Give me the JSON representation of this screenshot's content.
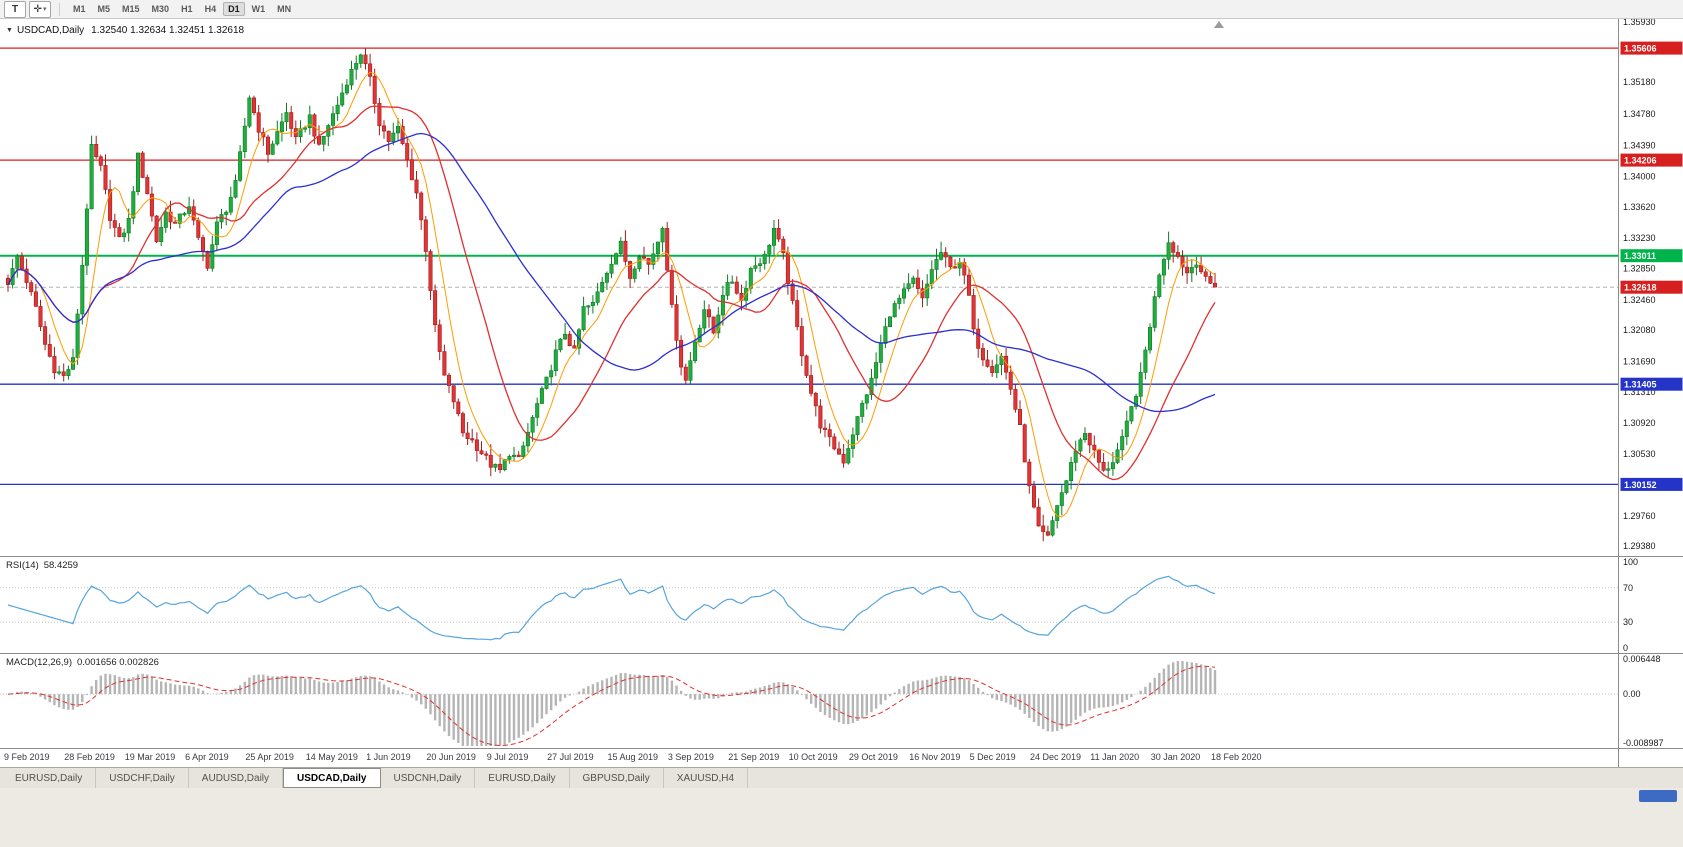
{
  "toolbar": {
    "t_button_label": "T",
    "timeframes": [
      "M1",
      "M5",
      "M15",
      "M30",
      "H1",
      "H4",
      "D1",
      "W1",
      "MN"
    ],
    "active_timeframe": "D1"
  },
  "chart_header": {
    "symbol": "USDCAD,Daily",
    "ohlc": "1.32540 1.32634 1.32451 1.32618"
  },
  "price_axis": {
    "labels": [
      "1.35930",
      "1.35180",
      "1.34780",
      "1.34390",
      "1.34000",
      "1.33620",
      "1.33230",
      "1.32850",
      "1.32460",
      "1.32080",
      "1.31690",
      "1.31310",
      "1.30920",
      "1.30530",
      "1.30140",
      "1.29760",
      "1.29380"
    ],
    "values": [
      1.3593,
      1.3518,
      1.3478,
      1.3439,
      1.34,
      1.3362,
      1.3323,
      1.3285,
      1.3246,
      1.3208,
      1.3169,
      1.3131,
      1.3092,
      1.3053,
      1.3014,
      1.2976,
      1.2938
    ]
  },
  "levels": [
    {
      "label": "1.35606",
      "price": 1.35606,
      "color": "#d62020"
    },
    {
      "label": "1.34206",
      "price": 1.34206,
      "color": "#d62020"
    },
    {
      "label": "1.33011",
      "price": 1.33011,
      "color": "#00b44c"
    },
    {
      "label": "1.31405",
      "price": 1.31405,
      "color": "#2433c8"
    },
    {
      "label": "1.30152",
      "price": 1.30152,
      "color": "#2433c8"
    }
  ],
  "current_price": {
    "label": "1.32618",
    "price": 1.32618,
    "color": "#d62020"
  },
  "chart_data": {
    "type": "candlestick",
    "symbol": "USDCAD",
    "timeframe": "Daily",
    "num_candles": 261,
    "price_range": [
      1.293,
      1.3597
    ],
    "noise": 0.0011,
    "wick": 0.0014,
    "up_color": "#1fae3d",
    "up_edge": "#0e7a24",
    "down_color": "#e23434",
    "down_edge": "#a21d1d",
    "moving_averages": [
      {
        "period": 7,
        "color": "#ff9c00"
      },
      {
        "period": 20,
        "color": "#e03030"
      },
      {
        "period": 45,
        "color": "#2b2fd4"
      }
    ],
    "anchors": [
      [
        0,
        1.3265
      ],
      [
        2,
        1.33
      ],
      [
        4,
        1.327
      ],
      [
        6,
        1.3235
      ],
      [
        8,
        1.319
      ],
      [
        10,
        1.316
      ],
      [
        12,
        1.315
      ],
      [
        14,
        1.317
      ],
      [
        16,
        1.329
      ],
      [
        18,
        1.3435
      ],
      [
        20,
        1.341
      ],
      [
        22,
        1.335
      ],
      [
        24,
        1.332
      ],
      [
        26,
        1.3345
      ],
      [
        28,
        1.3425
      ],
      [
        30,
        1.338
      ],
      [
        32,
        1.332
      ],
      [
        34,
        1.3355
      ],
      [
        36,
        1.334
      ],
      [
        39,
        1.3365
      ],
      [
        41,
        1.332
      ],
      [
        43,
        1.329
      ],
      [
        45,
        1.334
      ],
      [
        47,
        1.336
      ],
      [
        49,
        1.339
      ],
      [
        52,
        1.35
      ],
      [
        54,
        1.346
      ],
      [
        56,
        1.343
      ],
      [
        58,
        1.3455
      ],
      [
        60,
        1.348
      ],
      [
        62,
        1.3445
      ],
      [
        65,
        1.3475
      ],
      [
        67,
        1.3435
      ],
      [
        69,
        1.3465
      ],
      [
        71,
        1.349
      ],
      [
        73,
        1.352
      ],
      [
        76,
        1.3555
      ],
      [
        78,
        1.352
      ],
      [
        80,
        1.3468
      ],
      [
        82,
        1.3445
      ],
      [
        84,
        1.346
      ],
      [
        86,
        1.342
      ],
      [
        88,
        1.338
      ],
      [
        90,
        1.331
      ],
      [
        92,
        1.321
      ],
      [
        94,
        1.315
      ],
      [
        96,
        1.312
      ],
      [
        98,
        1.308
      ],
      [
        100,
        1.307
      ],
      [
        102,
        1.3055
      ],
      [
        104,
        1.304
      ],
      [
        106,
        1.3032
      ],
      [
        108,
        1.3055
      ],
      [
        110,
        1.3045
      ],
      [
        112,
        1.308
      ],
      [
        114,
        1.3115
      ],
      [
        116,
        1.3145
      ],
      [
        118,
        1.318
      ],
      [
        120,
        1.3205
      ],
      [
        122,
        1.318
      ],
      [
        124,
        1.3235
      ],
      [
        126,
        1.324
      ],
      [
        128,
        1.327
      ],
      [
        130,
        1.3295
      ],
      [
        132,
        1.3315
      ],
      [
        134,
        1.3275
      ],
      [
        136,
        1.3305
      ],
      [
        138,
        1.329
      ],
      [
        140,
        1.332
      ],
      [
        141,
        1.334
      ],
      [
        143,
        1.3235
      ],
      [
        145,
        1.3165
      ],
      [
        146,
        1.3145
      ],
      [
        148,
        1.3195
      ],
      [
        150,
        1.3235
      ],
      [
        152,
        1.3205
      ],
      [
        154,
        1.3255
      ],
      [
        156,
        1.327
      ],
      [
        158,
        1.3245
      ],
      [
        160,
        1.3285
      ],
      [
        163,
        1.33
      ],
      [
        165,
        1.3335
      ],
      [
        167,
        1.33
      ],
      [
        169,
        1.324
      ],
      [
        171,
        1.318
      ],
      [
        173,
        1.313
      ],
      [
        175,
        1.309
      ],
      [
        177,
        1.307
      ],
      [
        180,
        1.3045
      ],
      [
        182,
        1.308
      ],
      [
        184,
        1.3115
      ],
      [
        186,
        1.3145
      ],
      [
        188,
        1.319
      ],
      [
        190,
        1.323
      ],
      [
        193,
        1.3255
      ],
      [
        195,
        1.327
      ],
      [
        197,
        1.3245
      ],
      [
        199,
        1.3285
      ],
      [
        201,
        1.3305
      ],
      [
        203,
        1.3285
      ],
      [
        205,
        1.3295
      ],
      [
        207,
        1.325
      ],
      [
        208,
        1.3205
      ],
      [
        210,
        1.3175
      ],
      [
        212,
        1.316
      ],
      [
        214,
        1.3175
      ],
      [
        216,
        1.3135
      ],
      [
        218,
        1.3085
      ],
      [
        220,
        1.301
      ],
      [
        222,
        1.2958
      ],
      [
        224,
        1.2948
      ],
      [
        226,
        1.299
      ],
      [
        228,
        1.302
      ],
      [
        230,
        1.306
      ],
      [
        232,
        1.308
      ],
      [
        234,
        1.3055
      ],
      [
        236,
        1.303
      ],
      [
        238,
        1.3045
      ],
      [
        240,
        1.307
      ],
      [
        242,
        1.311
      ],
      [
        244,
        1.315
      ],
      [
        246,
        1.3215
      ],
      [
        248,
        1.328
      ],
      [
        250,
        1.332
      ],
      [
        252,
        1.33
      ],
      [
        254,
        1.328
      ],
      [
        256,
        1.3295
      ],
      [
        258,
        1.327
      ],
      [
        260,
        1.32618
      ]
    ],
    "date_labels": [
      "9 Feb 2019",
      "28 Feb 2019",
      "19 Mar 2019",
      "6 Apr 2019",
      "25 Apr 2019",
      "14 May 2019",
      "1 Jun 2019",
      "20 Jun 2019",
      "9 Jul 2019",
      "27 Jul 2019",
      "15 Aug 2019",
      "3 Sep 2019",
      "21 Sep 2019",
      "10 Oct 2019",
      "29 Oct 2019",
      "16 Nov 2019",
      "5 Dec 2019",
      "24 Dec 2019",
      "11 Jan 2020",
      "30 Jan 2020",
      "18 Feb 2020"
    ]
  },
  "rsi_panel": {
    "title": "RSI(14)",
    "value": "58.4259",
    "line_color": "#56a5dd",
    "axis_labels": [
      "100",
      "70",
      "30",
      "0"
    ],
    "axis_values": [
      100,
      70,
      30,
      0
    ],
    "guide_levels": [
      70,
      30
    ]
  },
  "macd_panel": {
    "title": "MACD(12,26,9)",
    "values": "0.001656 0.002826",
    "histogram_color": "#b5b5b5",
    "signal_color": "#e03030",
    "axis_labels": [
      "0.006448",
      "0.00",
      "-0.008987"
    ],
    "range": [
      -0.008987,
      0.006448
    ]
  },
  "tabs": [
    {
      "label": "EURUSD,Daily",
      "active": false
    },
    {
      "label": "USDCHF,Daily",
      "active": false
    },
    {
      "label": "AUDUSD,Daily",
      "active": false
    },
    {
      "label": "USDCAD,Daily",
      "active": true
    },
    {
      "label": "USDCNH,Daily",
      "active": false
    },
    {
      "label": "EURUSD,Daily",
      "active": false
    },
    {
      "label": "GBPUSD,Daily",
      "active": false
    },
    {
      "label": "XAUUSD,H4",
      "active": false
    }
  ]
}
